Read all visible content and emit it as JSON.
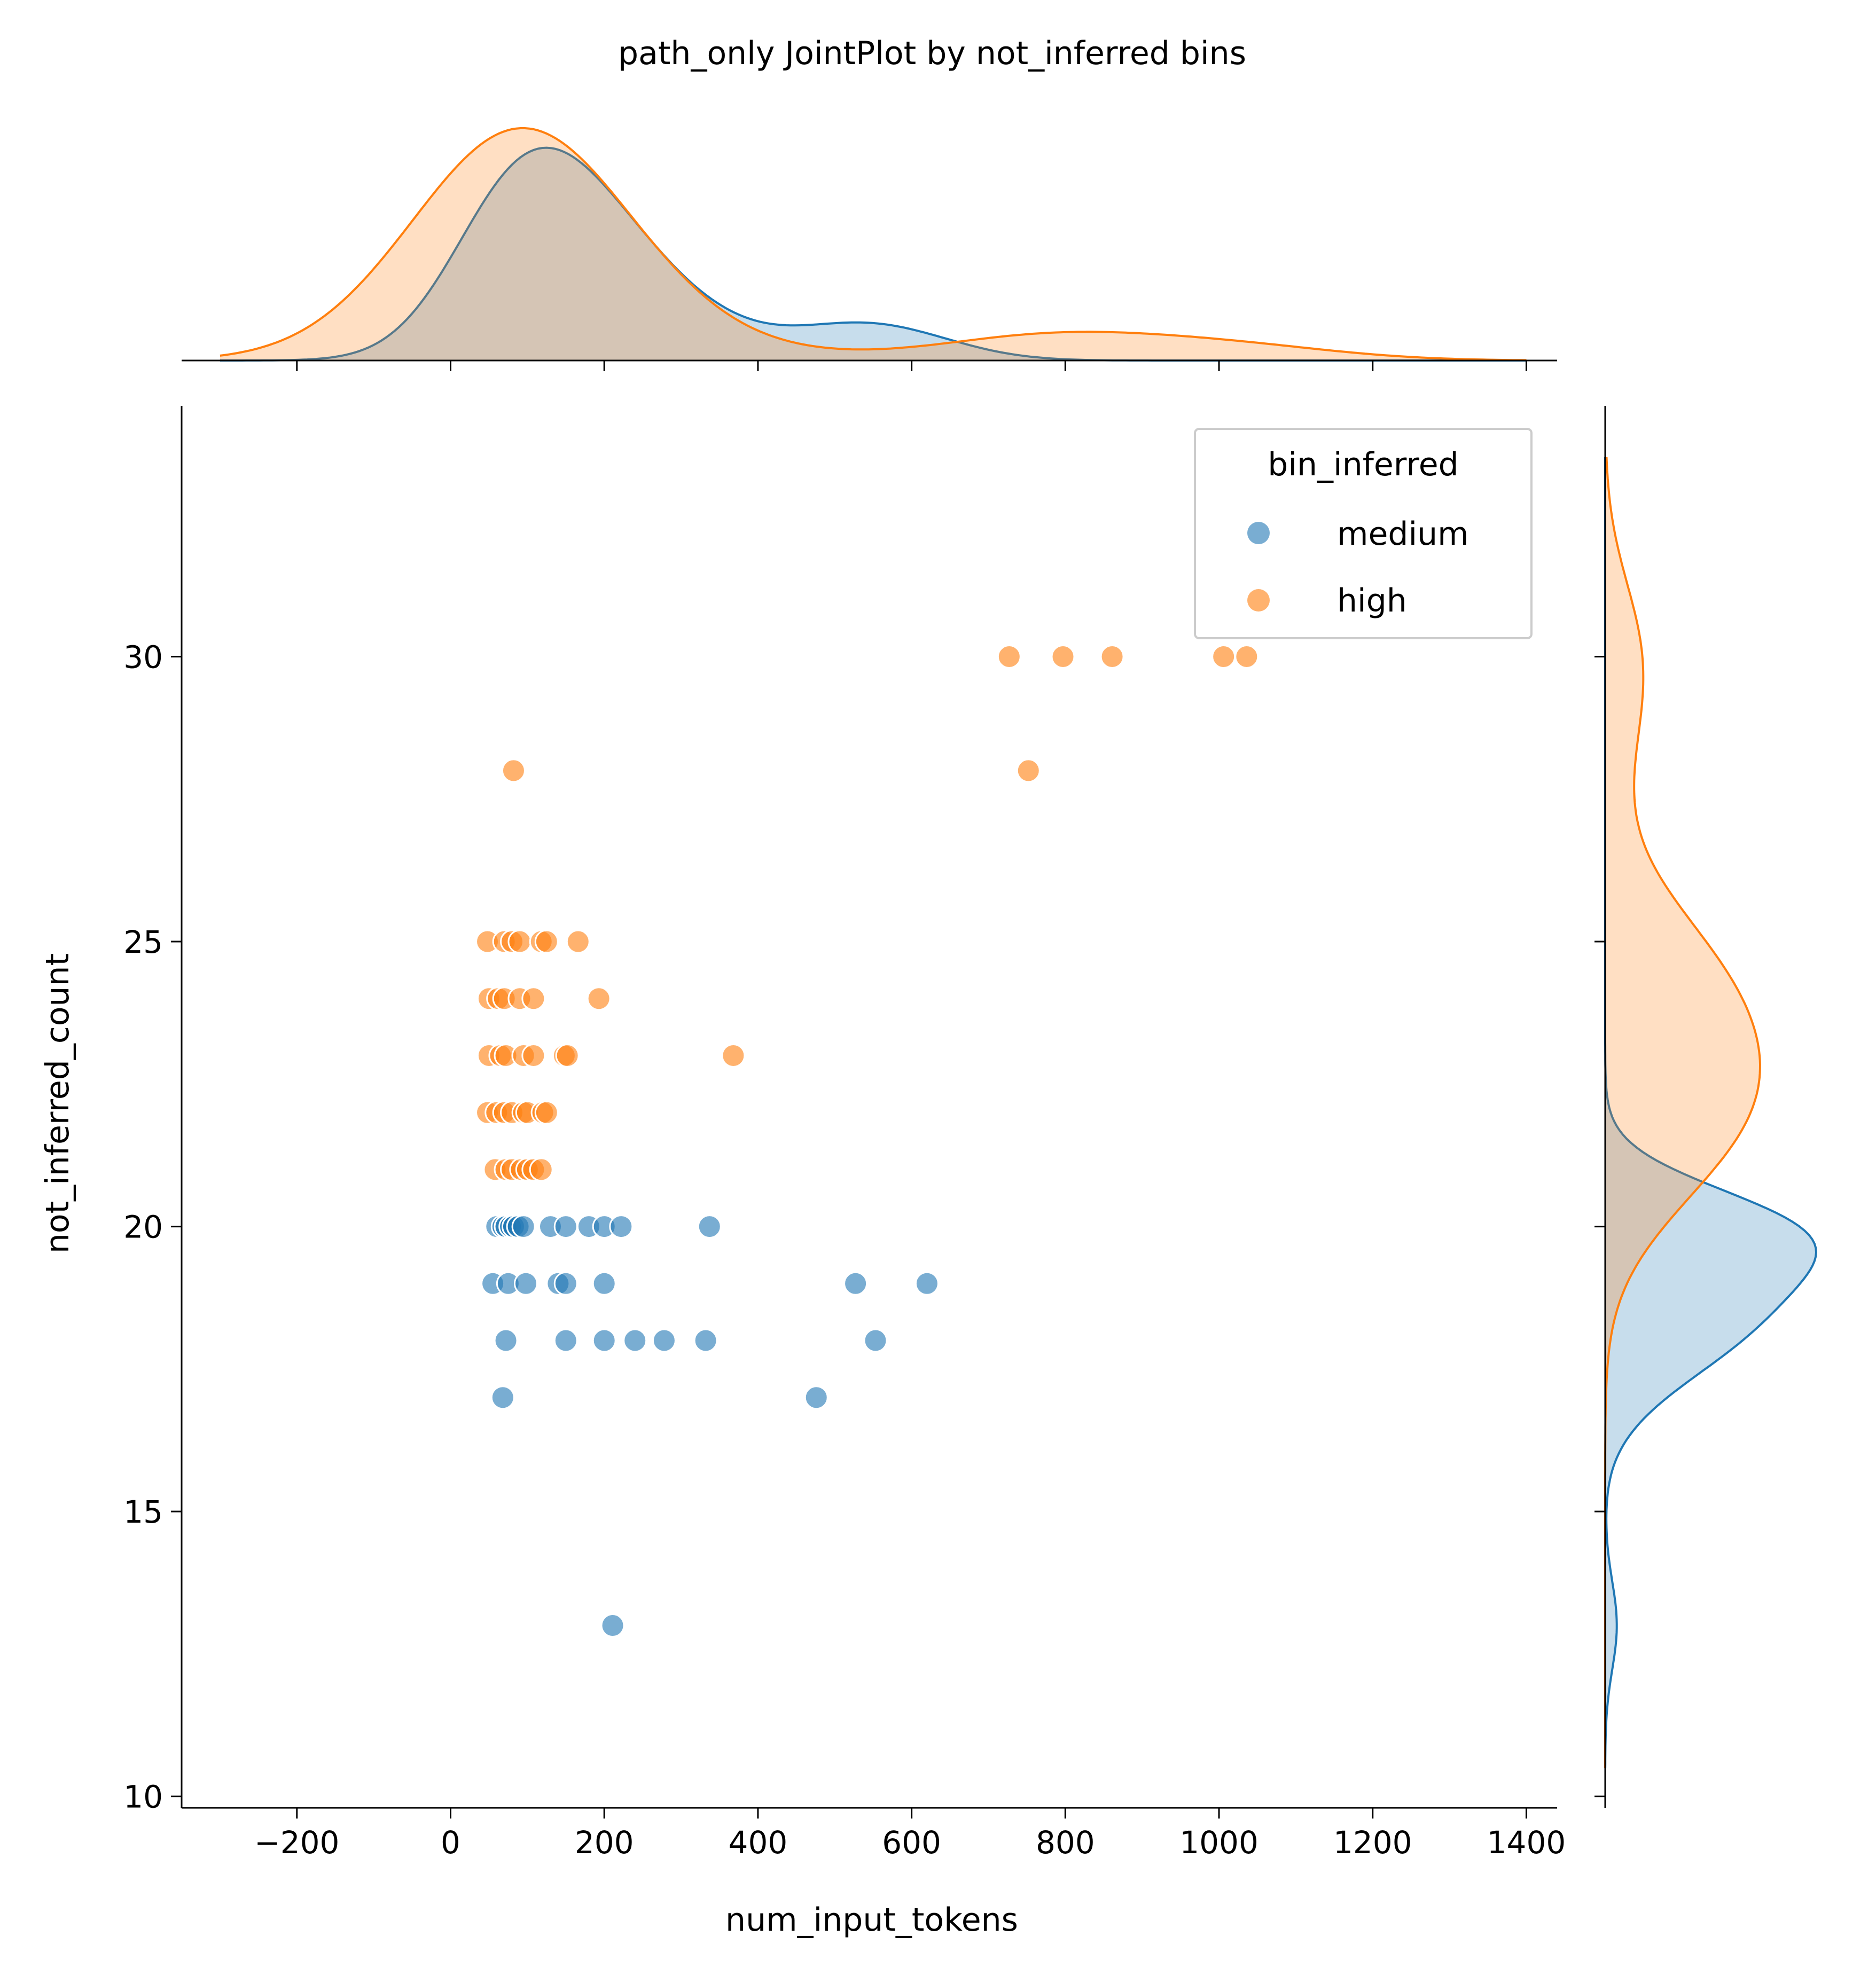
{
  "chart_data": {
    "type": "scatter",
    "title": "path_only JointPlot by not_inferred bins",
    "xlabel": "num_input_tokens",
    "ylabel": "not_inferred_count",
    "xlim": [
      -350,
      1440
    ],
    "ylim": [
      9.8,
      34.4
    ],
    "xticks": [
      -200,
      0,
      200,
      400,
      600,
      800,
      1000,
      1200,
      1400
    ],
    "xtick_labels": [
      "−200",
      "0",
      "200",
      "400",
      "600",
      "800",
      "1000",
      "1200",
      "1400"
    ],
    "yticks": [
      10,
      15,
      20,
      25,
      30
    ],
    "ytick_labels": [
      "10",
      "15",
      "20",
      "25",
      "30"
    ],
    "legend": {
      "title": "bin_inferred",
      "placement": "top-right"
    },
    "marginals": "kde, filled, per series",
    "series": [
      {
        "name": "medium",
        "color": "#1f77b4",
        "points": [
          [
            60,
            20
          ],
          [
            68,
            20
          ],
          [
            72,
            20
          ],
          [
            78,
            20
          ],
          [
            82,
            20
          ],
          [
            88,
            20
          ],
          [
            95,
            20
          ],
          [
            130,
            20
          ],
          [
            150,
            20
          ],
          [
            180,
            20
          ],
          [
            200,
            20
          ],
          [
            222,
            20
          ],
          [
            337,
            20
          ],
          [
            55,
            19
          ],
          [
            75,
            19
          ],
          [
            98,
            19
          ],
          [
            140,
            19
          ],
          [
            150,
            19
          ],
          [
            200,
            19
          ],
          [
            527,
            19
          ],
          [
            620,
            19
          ],
          [
            72,
            18
          ],
          [
            150,
            18
          ],
          [
            200,
            18
          ],
          [
            240,
            18
          ],
          [
            278,
            18
          ],
          [
            332,
            18
          ],
          [
            553,
            18
          ],
          [
            68,
            17
          ],
          [
            476,
            17
          ],
          [
            211,
            13
          ]
        ]
      },
      {
        "name": "high",
        "color": "#ff7f0e",
        "points": [
          [
            727,
            30
          ],
          [
            797,
            30
          ],
          [
            861,
            30
          ],
          [
            1006,
            30
          ],
          [
            1036,
            30
          ],
          [
            82,
            28
          ],
          [
            752,
            28
          ],
          [
            48,
            25
          ],
          [
            70,
            25
          ],
          [
            80,
            25
          ],
          [
            90,
            25
          ],
          [
            118,
            25
          ],
          [
            125,
            25
          ],
          [
            166,
            25
          ],
          [
            50,
            24
          ],
          [
            62,
            24
          ],
          [
            70,
            24
          ],
          [
            90,
            24
          ],
          [
            108,
            24
          ],
          [
            193,
            24
          ],
          [
            50,
            23
          ],
          [
            65,
            23
          ],
          [
            72,
            23
          ],
          [
            95,
            23
          ],
          [
            108,
            23
          ],
          [
            148,
            23
          ],
          [
            152,
            23
          ],
          [
            368,
            23
          ],
          [
            48,
            22
          ],
          [
            60,
            22
          ],
          [
            70,
            22
          ],
          [
            80,
            22
          ],
          [
            95,
            22
          ],
          [
            100,
            22
          ],
          [
            120,
            22
          ],
          [
            125,
            22
          ],
          [
            58,
            21
          ],
          [
            72,
            21
          ],
          [
            80,
            21
          ],
          [
            92,
            21
          ],
          [
            100,
            21
          ],
          [
            108,
            21
          ],
          [
            118,
            21
          ]
        ]
      }
    ]
  }
}
